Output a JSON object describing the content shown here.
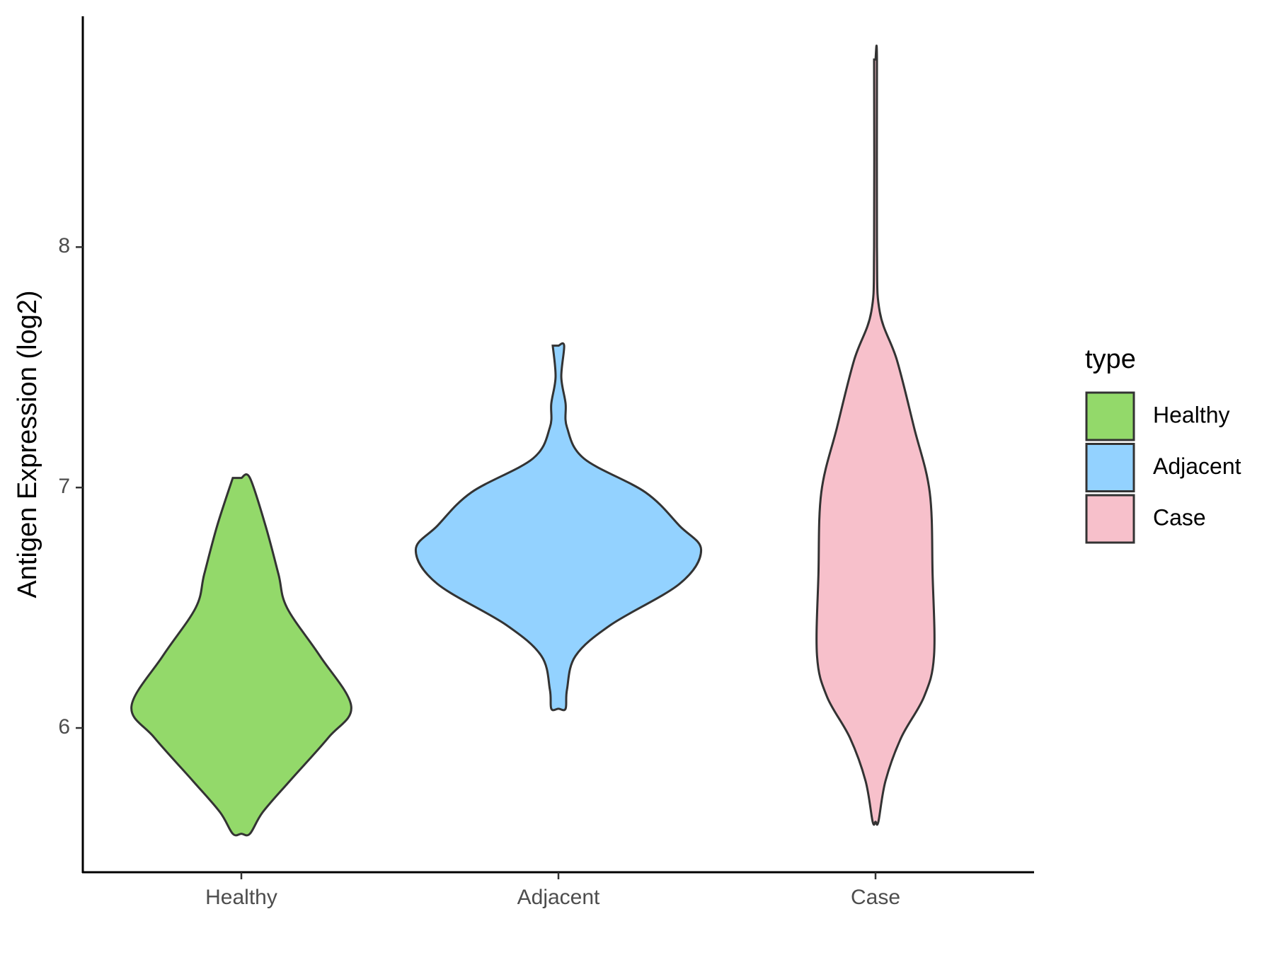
{
  "chart_data": {
    "type": "violin",
    "y_label": "Antigen Expression (log2)",
    "legend_title": "type",
    "legend": "right",
    "categories": [
      "Healthy",
      "Adjacent",
      "Case"
    ],
    "ylim": [
      5.4,
      8.96
    ],
    "yticks": [
      6,
      7,
      8
    ],
    "series": [
      {
        "name": "Healthy",
        "color": "#93D96A",
        "values": [
          7.04,
          6.84,
          6.64,
          6.5,
          6.3,
          6.09,
          5.96,
          5.78,
          5.65,
          5.56
        ],
        "density": [
          0.06,
          0.17,
          0.26,
          0.32,
          0.55,
          0.77,
          0.61,
          0.34,
          0.15,
          0.06
        ]
      },
      {
        "name": "Adjacent",
        "color": "#93D2FF",
        "values": [
          7.59,
          7.46,
          7.35,
          7.25,
          7.12,
          6.98,
          6.84,
          6.74,
          6.6,
          6.43,
          6.3,
          6.16,
          6.08
        ],
        "density": [
          0.04,
          0.02,
          0.05,
          0.06,
          0.18,
          0.61,
          0.85,
          1,
          0.85,
          0.37,
          0.12,
          0.06,
          0.05
        ]
      },
      {
        "name": "Case",
        "color": "#F7C0CB",
        "values": [
          8.78,
          8,
          7.73,
          7.53,
          7.25,
          6.98,
          6.64,
          6.3,
          6.13,
          5.96,
          5.78,
          5.61
        ],
        "density": [
          0.01,
          0.01,
          0.03,
          0.15,
          0.27,
          0.38,
          0.4,
          0.41,
          0.34,
          0.18,
          0.07,
          0.02
        ]
      }
    ]
  }
}
